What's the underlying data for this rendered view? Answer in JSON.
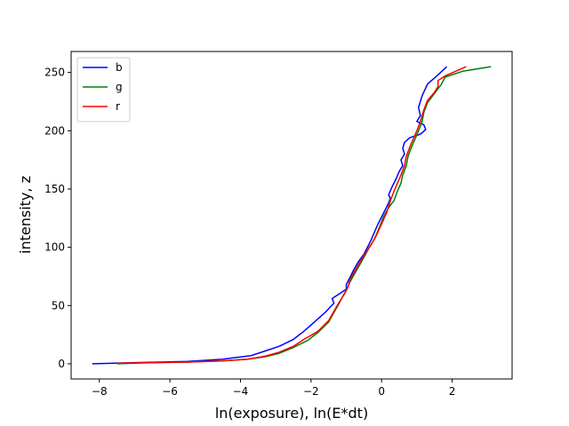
{
  "chart_data": {
    "type": "line",
    "xlabel": "ln(exposure), ln(E*dt)",
    "ylabel": "intensity, z",
    "xlim": [
      -8.8,
      3.7
    ],
    "ylim": [
      -13,
      268
    ],
    "xticks": [
      -8,
      -6,
      -4,
      -2,
      0,
      2
    ],
    "yticks": [
      0,
      50,
      100,
      150,
      200,
      250
    ],
    "xtick_labels": [
      "−8",
      "−6",
      "−4",
      "−2",
      "0",
      "2"
    ],
    "ytick_labels": [
      "0",
      "50",
      "100",
      "150",
      "200",
      "250"
    ],
    "grid": false,
    "legend_position": "top-left",
    "series": [
      {
        "name": "b",
        "color": "#0000ff",
        "points": [
          [
            -8.2,
            0
          ],
          [
            -7,
            1
          ],
          [
            -5.5,
            2
          ],
          [
            -4.5,
            4
          ],
          [
            -3.7,
            7
          ],
          [
            -3.3,
            11
          ],
          [
            -2.9,
            15
          ],
          [
            -2.5,
            21
          ],
          [
            -2.2,
            28
          ],
          [
            -1.9,
            36
          ],
          [
            -1.6,
            44
          ],
          [
            -1.35,
            52
          ],
          [
            -1.4,
            56
          ],
          [
            -1.2,
            60
          ],
          [
            -1.0,
            64
          ],
          [
            -1.0,
            68
          ],
          [
            -0.9,
            74
          ],
          [
            -0.8,
            80
          ],
          [
            -0.65,
            88
          ],
          [
            -0.5,
            94
          ],
          [
            -0.4,
            100
          ],
          [
            -0.3,
            106
          ],
          [
            -0.2,
            113
          ],
          [
            -0.1,
            120
          ],
          [
            0,
            126
          ],
          [
            0.1,
            132
          ],
          [
            0.2,
            138
          ],
          [
            0.25,
            142
          ],
          [
            0.2,
            145
          ],
          [
            0.3,
            152
          ],
          [
            0.4,
            158
          ],
          [
            0.5,
            165
          ],
          [
            0.6,
            170
          ],
          [
            0.55,
            175
          ],
          [
            0.65,
            180
          ],
          [
            0.6,
            185
          ],
          [
            0.65,
            190
          ],
          [
            0.8,
            194
          ],
          [
            1.1,
            197
          ],
          [
            1.25,
            201
          ],
          [
            1.2,
            205
          ],
          [
            1.0,
            208
          ],
          [
            1.1,
            213
          ],
          [
            1.05,
            220
          ],
          [
            1.15,
            230
          ],
          [
            1.3,
            240
          ],
          [
            1.6,
            248
          ],
          [
            1.85,
            255
          ]
        ]
      },
      {
        "name": "g",
        "color": "#008000",
        "points": [
          [
            -7.5,
            0
          ],
          [
            -6.5,
            1
          ],
          [
            -5.5,
            1.5
          ],
          [
            -4.5,
            2.5
          ],
          [
            -3.8,
            4
          ],
          [
            -3.3,
            6
          ],
          [
            -2.9,
            9
          ],
          [
            -2.5,
            14
          ],
          [
            -2.1,
            20
          ],
          [
            -1.8,
            27
          ],
          [
            -1.5,
            36
          ],
          [
            -1.35,
            44
          ],
          [
            -1.2,
            52
          ],
          [
            -1.1,
            58
          ],
          [
            -1.0,
            63
          ],
          [
            -0.9,
            70
          ],
          [
            -0.75,
            78
          ],
          [
            -0.6,
            86
          ],
          [
            -0.45,
            94
          ],
          [
            -0.35,
            100
          ],
          [
            -0.2,
            107
          ],
          [
            -0.05,
            118
          ],
          [
            0.05,
            126
          ],
          [
            0.2,
            134
          ],
          [
            0.35,
            140
          ],
          [
            0.45,
            148
          ],
          [
            0.55,
            155
          ],
          [
            0.6,
            162
          ],
          [
            0.7,
            170
          ],
          [
            0.75,
            178
          ],
          [
            0.85,
            186
          ],
          [
            0.95,
            193
          ],
          [
            1.05,
            200
          ],
          [
            1.15,
            208
          ],
          [
            1.2,
            216
          ],
          [
            1.3,
            224
          ],
          [
            1.5,
            232
          ],
          [
            1.7,
            240
          ],
          [
            1.8,
            246
          ],
          [
            2.3,
            251
          ],
          [
            3.1,
            255
          ]
        ]
      },
      {
        "name": "r",
        "color": "#ff0000",
        "points": [
          [
            -7.5,
            0.5
          ],
          [
            -6.5,
            1
          ],
          [
            -5.5,
            1.5
          ],
          [
            -4.5,
            2.5
          ],
          [
            -3.8,
            4
          ],
          [
            -3.3,
            6.5
          ],
          [
            -2.9,
            10
          ],
          [
            -2.5,
            15
          ],
          [
            -2.2,
            21
          ],
          [
            -1.8,
            28
          ],
          [
            -1.5,
            37
          ],
          [
            -1.35,
            45
          ],
          [
            -1.2,
            53
          ],
          [
            -1.05,
            60
          ],
          [
            -0.95,
            66
          ],
          [
            -0.9,
            72
          ],
          [
            -0.75,
            80
          ],
          [
            -0.6,
            88
          ],
          [
            -0.45,
            95
          ],
          [
            -0.3,
            102
          ],
          [
            -0.15,
            110
          ],
          [
            0,
            120
          ],
          [
            0.15,
            130
          ],
          [
            0.25,
            140
          ],
          [
            0.35,
            148
          ],
          [
            0.45,
            155
          ],
          [
            0.55,
            162
          ],
          [
            0.65,
            170
          ],
          [
            0.7,
            178
          ],
          [
            0.8,
            186
          ],
          [
            0.9,
            193
          ],
          [
            1.0,
            200
          ],
          [
            1.1,
            208
          ],
          [
            1.2,
            218
          ],
          [
            1.3,
            226
          ],
          [
            1.5,
            233
          ],
          [
            1.6,
            238
          ],
          [
            1.6,
            243
          ],
          [
            1.8,
            247
          ],
          [
            2.1,
            251
          ],
          [
            2.4,
            255
          ]
        ]
      }
    ]
  }
}
